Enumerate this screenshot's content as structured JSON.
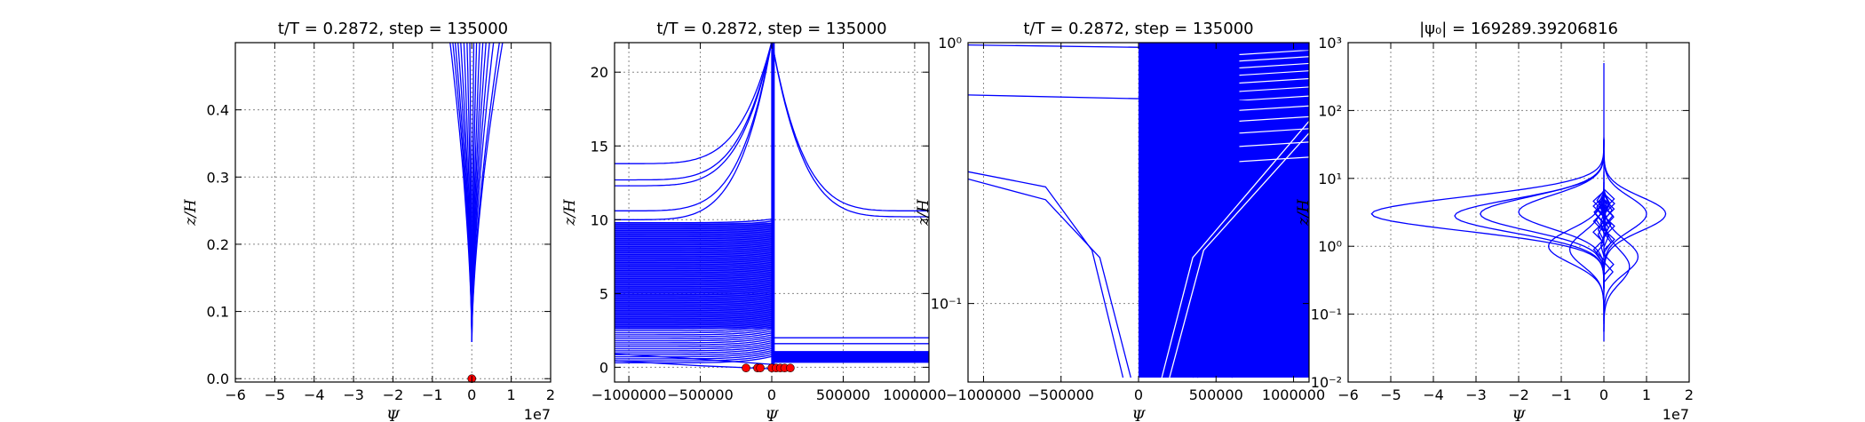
{
  "chart_data": [
    {
      "type": "line",
      "title": "t/T = 0.2872, step = 135000",
      "xlabel": "Ψ",
      "ylabel": "z/H",
      "x_offset_label": "1e7",
      "xlim": [
        -6,
        2
      ],
      "ylim": [
        -0.005,
        0.5
      ],
      "y_scale": "linear",
      "grid": true,
      "x_ticks": [
        -6,
        -5,
        -4,
        -3,
        -2,
        -1,
        0,
        1,
        2
      ],
      "x_tick_labels": [
        "−6",
        "−5",
        "−4",
        "−3",
        "−2",
        "−1",
        "0",
        "1",
        "2"
      ],
      "y_ticks": [
        0.0,
        0.1,
        0.2,
        0.3,
        0.4
      ],
      "y_tick_labels": [
        "0.0",
        "0.1",
        "0.2",
        "0.3",
        "0.4"
      ],
      "curve_tip": [
        0.0,
        0.055
      ],
      "curves_top_x": [
        -0.55,
        -0.48,
        -0.42,
        -0.35,
        -0.28,
        -0.2,
        -0.12,
        -0.05,
        0.05,
        0.12,
        0.2,
        0.28,
        0.36,
        0.45,
        0.55,
        0.7,
        0.78
      ],
      "markers": [
        {
          "x": 0.0,
          "y": 0.0
        }
      ]
    },
    {
      "type": "line",
      "title": "t/T = 0.2872, step = 135000",
      "xlabel": "Ψ",
      "ylabel": "z/H",
      "xlim": [
        -1100000,
        1100000
      ],
      "ylim": [
        -1,
        22
      ],
      "y_scale": "linear",
      "grid": true,
      "x_ticks": [
        -1000000,
        -500000,
        0,
        500000,
        1000000
      ],
      "x_tick_labels": [
        "−1000000",
        "−500000",
        "0",
        "500000",
        "1000000"
      ],
      "y_ticks": [
        0,
        5,
        10,
        15,
        20
      ],
      "y_tick_labels": [
        "0",
        "5",
        "10",
        "15",
        "20"
      ],
      "left_curves_y_at_left_edge": [
        13.8,
        12.7,
        12.3,
        10.6,
        10.0
      ],
      "right_curves_y_at_right_edge": [
        10.6,
        10.2
      ],
      "left_band_y_range": [
        0.3,
        9.8
      ],
      "markers": [
        {
          "x": -180000,
          "y": -0.05
        },
        {
          "x": -100000,
          "y": -0.05
        },
        {
          "x": -80000,
          "y": -0.05
        },
        {
          "x": 0,
          "y": -0.05
        },
        {
          "x": 30000,
          "y": -0.05
        },
        {
          "x": 60000,
          "y": -0.05
        },
        {
          "x": 90000,
          "y": -0.05
        },
        {
          "x": 130000,
          "y": -0.05
        }
      ]
    },
    {
      "type": "line",
      "title": "t/T = 0.2872, step = 135000",
      "xlabel": "Ψ",
      "ylabel": "z/H",
      "xlim": [
        -1100000,
        1100000
      ],
      "ylim": [
        0.05,
        1
      ],
      "y_scale": "log",
      "grid": true,
      "x_ticks": [
        -1000000,
        -500000,
        0,
        500000,
        1000000
      ],
      "x_tick_labels": [
        "−1000000",
        "−500000",
        "0",
        "500000",
        "1000000"
      ],
      "y_ticks": [
        0.1,
        1
      ],
      "y_tick_labels": [
        "10⁻¹",
        "10⁰"
      ],
      "diagonal_lines": [
        {
          "x": [
            -1100000,
            1100000
          ],
          "y": [
            0.98,
            0.94
          ]
        },
        {
          "x": [
            -1100000,
            1100000
          ],
          "y": [
            0.63,
            0.59
          ]
        }
      ],
      "left_bent_curves": [
        {
          "x": [
            -1100000,
            -600000,
            -300000,
            -100000
          ],
          "y": [
            0.32,
            0.28,
            0.16,
            0.052
          ]
        },
        {
          "x": [
            -1100000,
            -600000,
            -250000,
            -50000
          ],
          "y": [
            0.3,
            0.25,
            0.15,
            0.052
          ]
        }
      ],
      "right_lines": [
        {
          "x": [
            350000,
            1100000
          ],
          "y": [
            0.052,
            0.2
          ]
        },
        {
          "x": [
            380000,
            1100000
          ],
          "y": [
            0.052,
            0.15
          ]
        },
        {
          "x": [
            600000,
            1100000
          ],
          "y": [
            0.052,
            0.08
          ]
        }
      ]
    },
    {
      "type": "line",
      "title": "|ψ₀| = 169289.39206816",
      "xlabel": "Ψ",
      "ylabel": "z/H",
      "x_offset_label": "1e7",
      "xlim": [
        -6,
        2
      ],
      "ylim": [
        0.01,
        1000
      ],
      "y_scale": "log",
      "grid": true,
      "x_ticks": [
        -6,
        -5,
        -4,
        -3,
        -2,
        -1,
        0,
        1,
        2
      ],
      "x_tick_labels": [
        "−6",
        "−5",
        "−4",
        "−3",
        "−2",
        "−1",
        "0",
        "1",
        "2"
      ],
      "y_ticks": [
        0.01,
        0.1,
        1,
        10,
        100,
        1000
      ],
      "y_tick_labels": [
        "10⁻²",
        "10⁻¹",
        "10⁰",
        "10¹",
        "10²",
        "10³"
      ],
      "left_lobe_peaks": [
        {
          "x": -5.45,
          "z": 3.0
        },
        {
          "x": -3.5,
          "z": 2.8
        },
        {
          "x": -2.9,
          "z": 3.0
        },
        {
          "x": -2.0,
          "z": 3.2
        },
        {
          "x": -1.3,
          "z": 1.0
        },
        {
          "x": -0.8,
          "z": 0.9
        }
      ],
      "right_lobe_peaks": [
        {
          "x": 1.45,
          "z": 3.0
        },
        {
          "x": 1.0,
          "z": 3.0
        },
        {
          "x": 0.8,
          "z": 0.7
        },
        {
          "x": 0.6,
          "z": 0.5
        }
      ],
      "spike_top_z": 500,
      "spike_bottom_z": 0.055
    }
  ]
}
